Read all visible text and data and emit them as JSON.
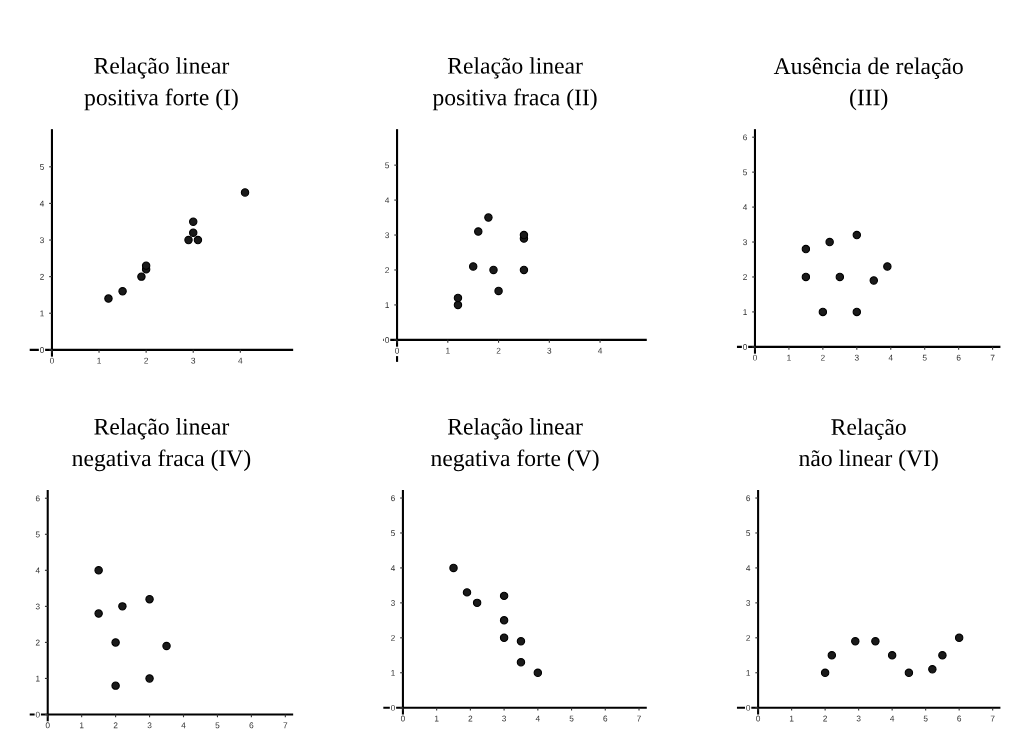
{
  "chart_data": [
    {
      "type": "scatter",
      "title": "Relação linear\npositiva forte (I)",
      "x": [
        1.2,
        1.5,
        1.9,
        2,
        2,
        2.9,
        3,
        3,
        3.1,
        4.1
      ],
      "values": [
        1.4,
        1.6,
        2,
        2.2,
        2.3,
        3,
        3.2,
        3.5,
        3,
        4.3
      ],
      "color": "#1a1a1a",
      "marker": "circle",
      "xlim": [
        -0.45,
        5.1
      ],
      "ylim": [
        -0.3,
        6
      ],
      "xticks": [
        0,
        1,
        2,
        3,
        4
      ],
      "yticks": [
        0,
        1,
        2,
        3,
        4,
        5
      ],
      "grid": false
    },
    {
      "type": "scatter",
      "title": "Relação linear\npositiva fraca (II)",
      "x": [
        1.2,
        1.2,
        1.5,
        1.6,
        1.8,
        1.9,
        2,
        2.5,
        2.5,
        2.5
      ],
      "values": [
        1,
        1.2,
        2.1,
        3.1,
        3.5,
        2,
        1.4,
        2,
        2.9,
        3
      ],
      "color": "#1a1a1a",
      "marker": "circle",
      "xlim": [
        -0.25,
        4.9
      ],
      "ylim": [
        -0.6,
        6
      ],
      "xticks": [
        0,
        1,
        2,
        3,
        4
      ],
      "yticks": [
        0,
        1,
        2,
        3,
        4,
        5
      ],
      "grid": false
    },
    {
      "type": "scatter",
      "title": "Ausência de relação\n(III)",
      "x": [
        1.5,
        1.5,
        2,
        2.2,
        2.5,
        3,
        3,
        3.5,
        3.9
      ],
      "values": [
        2,
        2.8,
        1,
        3,
        2,
        3.2,
        1,
        1.9,
        2.3
      ],
      "color": "#1a1a1a",
      "marker": "circle",
      "xlim": [
        -0.5,
        7.2
      ],
      "ylim": [
        -0.4,
        6.2
      ],
      "xticks": [
        0,
        1,
        2,
        3,
        4,
        5,
        6,
        7
      ],
      "yticks": [
        0,
        1,
        2,
        3,
        4,
        5,
        6
      ],
      "grid": false
    },
    {
      "type": "scatter",
      "title": "Relação linear\nnegativa fraca (IV)",
      "x": [
        1.5,
        1.5,
        2,
        2,
        2.2,
        3,
        3,
        3.5
      ],
      "values": [
        4,
        2.8,
        2,
        0.8,
        3,
        3.2,
        1,
        1.9
      ],
      "color": "#1a1a1a",
      "marker": "circle",
      "xlim": [
        -0.5,
        7.2
      ],
      "ylim": [
        -0.2,
        6.2
      ],
      "xticks": [
        0,
        1,
        2,
        3,
        4,
        5,
        6,
        7
      ],
      "yticks": [
        0,
        1,
        2,
        3,
        4,
        5,
        6
      ],
      "grid": false
    },
    {
      "type": "scatter",
      "title": "Relação linear\nnegativa forte (V)",
      "x": [
        1.5,
        1.9,
        2.2,
        3,
        3,
        3,
        3.5,
        3.5,
        4
      ],
      "values": [
        4,
        3.3,
        3,
        3.2,
        2.5,
        2,
        1.9,
        1.3,
        1
      ],
      "color": "#1a1a1a",
      "marker": "circle",
      "xlim": [
        -0.55,
        7.2
      ],
      "ylim": [
        -0.4,
        6.2
      ],
      "xticks": [
        0,
        1,
        2,
        3,
        4,
        5,
        6,
        7
      ],
      "yticks": [
        0,
        1,
        2,
        3,
        4,
        5,
        6
      ],
      "grid": false
    },
    {
      "type": "scatter",
      "title": "Relação\nnão linear (VI)",
      "x": [
        2,
        2.2,
        2.9,
        3.5,
        4,
        4.5,
        5.2,
        5.5,
        6
      ],
      "values": [
        1,
        1.5,
        1.9,
        1.9,
        1.5,
        1,
        1.1,
        1.5,
        2
      ],
      "color": "#1a1a1a",
      "marker": "circle",
      "xlim": [
        -0.6,
        7.2
      ],
      "ylim": [
        -0.4,
        6.2
      ],
      "xticks": [
        0,
        1,
        2,
        3,
        4,
        5,
        6,
        7
      ],
      "yticks": [
        0,
        1,
        2,
        3,
        4,
        5,
        6
      ],
      "grid": false
    }
  ]
}
